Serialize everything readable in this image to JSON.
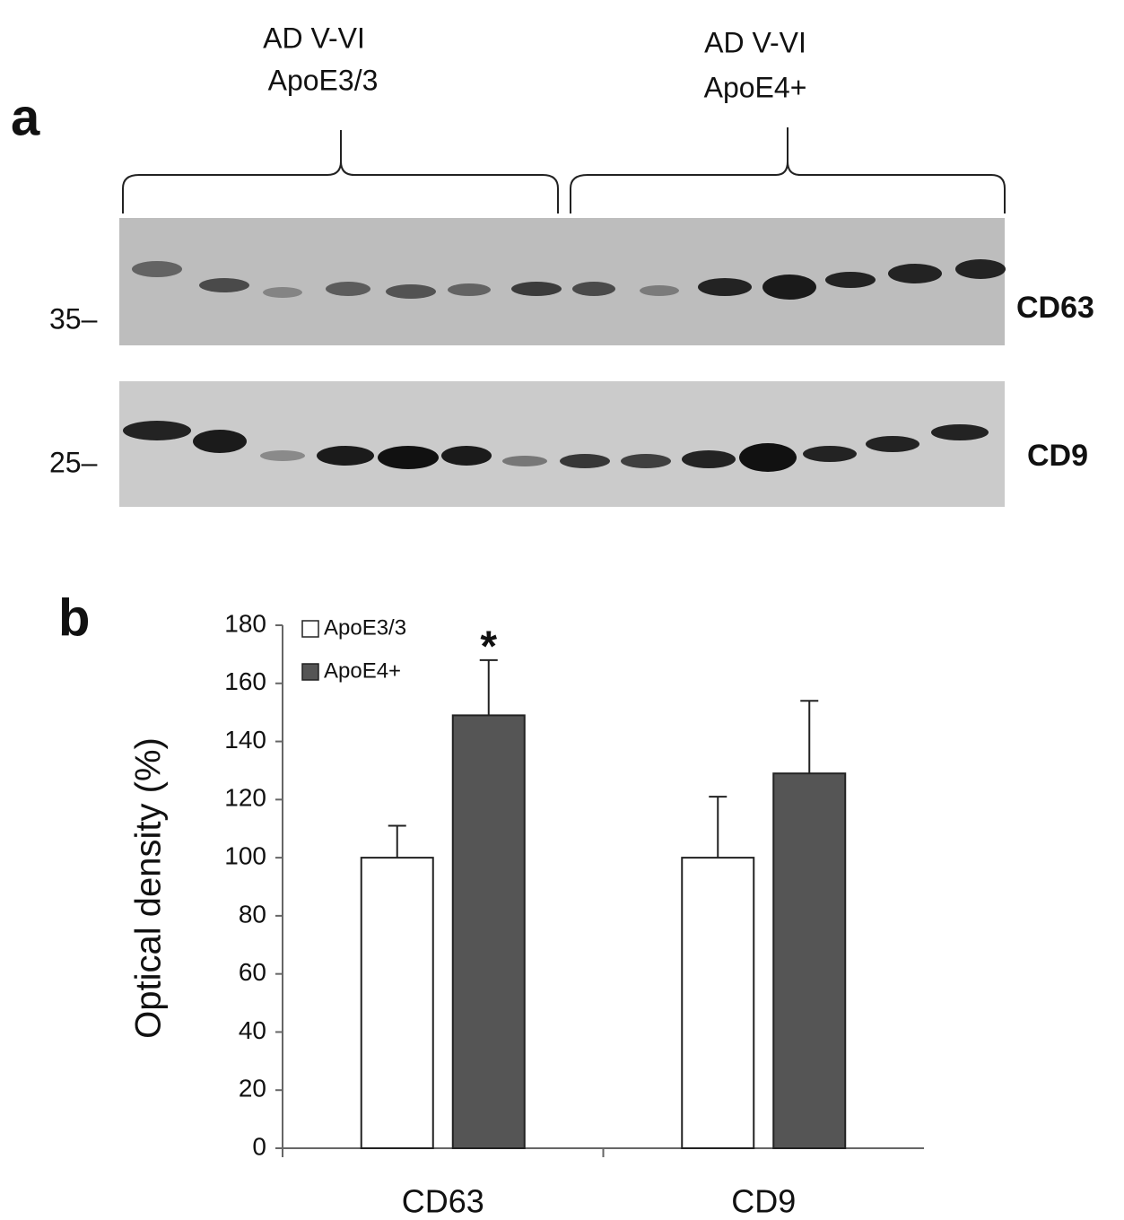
{
  "panel_a": {
    "label": "a",
    "groups": [
      {
        "line1": "AD V-VI",
        "line2": "ApoE3/3"
      },
      {
        "line1": "AD V-VI",
        "line2": "ApoE4+"
      }
    ],
    "markers": [
      "35–",
      "25–"
    ],
    "blots": [
      "CD63",
      "CD9"
    ]
  },
  "panel_b": {
    "label": "b"
  },
  "chart_data": {
    "type": "bar",
    "ylabel": "Optical density (%)",
    "categories": [
      "CD63",
      "CD9"
    ],
    "series": [
      {
        "name": "ApoE3/3",
        "color": "#ffffff",
        "values": [
          100,
          100
        ],
        "errors": [
          11,
          21
        ]
      },
      {
        "name": "ApoE4+",
        "color": "#555555",
        "values": [
          149,
          129
        ],
        "errors": [
          19,
          25
        ]
      }
    ],
    "ylim": [
      0,
      180
    ],
    "yticks": [
      0,
      20,
      40,
      60,
      80,
      100,
      120,
      140,
      160,
      180
    ],
    "grid": false,
    "legend": "top-left",
    "annotations": [
      {
        "text": "*",
        "series": 1,
        "category": 0
      }
    ]
  }
}
